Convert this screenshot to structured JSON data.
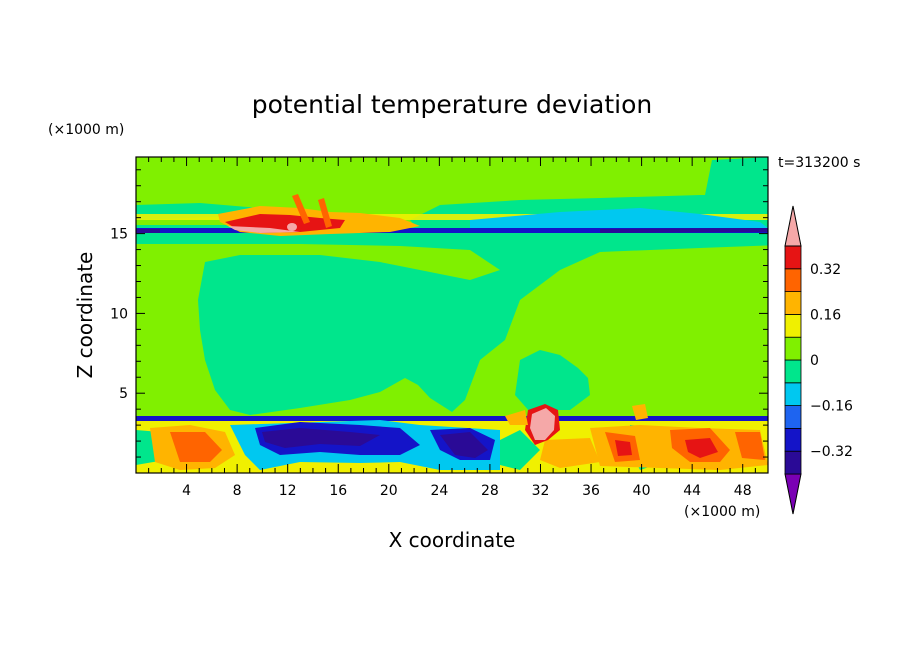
{
  "chart_data": {
    "type": "heatmap",
    "title": "potential temperature deviation",
    "xlabel": "X coordinate",
    "ylabel": "Z coordinate",
    "x_unit": "(×1000 m)",
    "y_unit": "(×1000 m)",
    "time_label": "t=313200 s",
    "xlim": [
      0,
      50
    ],
    "ylim": [
      0,
      19.8
    ],
    "xticks": [
      4,
      8,
      12,
      16,
      20,
      24,
      28,
      32,
      36,
      40,
      44,
      48
    ],
    "yticks": [
      5,
      10,
      15
    ],
    "colorbar": {
      "levels": [
        -0.48,
        -0.4,
        -0.32,
        -0.24,
        -0.16,
        -0.08,
        0,
        0.08,
        0.16,
        0.24,
        0.32,
        0.4,
        0.48
      ],
      "labels": [
        -0.32,
        -0.16,
        0,
        0.16,
        0.32
      ],
      "colors": [
        "#7a00b4",
        "#2a0a96",
        "#1414c8",
        "#1e64f0",
        "#00c8f0",
        "#00e68c",
        "#80f000",
        "#f0f000",
        "#ffb400",
        "#ff6400",
        "#e61414",
        "#f5a8a8"
      ]
    },
    "regions": [
      {
        "label": "base field",
        "value": 0.04
      },
      {
        "label": "near-zero plume",
        "value": -0.04
      },
      {
        "label": "tropopause cold band z≈15.3",
        "value": -0.35
      },
      {
        "label": "tropopause warm anomaly x≈9–15, z≈15.5–16.5",
        "value": 0.4
      },
      {
        "label": "boundary layer warm cells z<3.5",
        "value": 0.3
      },
      {
        "label": "boundary layer cold cells x≈8–28",
        "value": -0.4
      },
      {
        "label": "warm bubble x≈31–33, z≈2.5–4",
        "value": 0.45
      }
    ]
  }
}
